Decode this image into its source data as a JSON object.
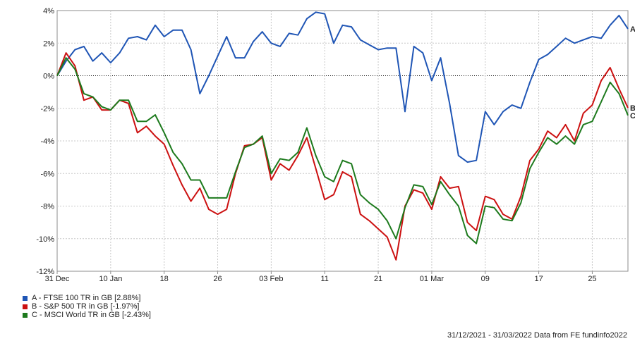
{
  "chart_data": {
    "type": "line",
    "title": "",
    "xlabel": "",
    "ylabel": "",
    "ylim": [
      -12,
      4
    ],
    "yticks": [
      4,
      2,
      0,
      -2,
      -4,
      -6,
      -8,
      -10,
      -12
    ],
    "ytick_labels": [
      "4%",
      "2%",
      "0%",
      "-2%",
      "-4%",
      "-6%",
      "-8%",
      "-10%",
      "-12%"
    ],
    "xticks": [
      {
        "label": "31 Dec",
        "index": 0
      },
      {
        "label": "10 Jan",
        "index": 6
      },
      {
        "label": "18",
        "index": 12
      },
      {
        "label": "26",
        "index": 18
      },
      {
        "label": "03 Feb",
        "index": 24
      },
      {
        "label": "11",
        "index": 30
      },
      {
        "label": "21",
        "index": 36
      },
      {
        "label": "01 Mar",
        "index": 42
      },
      {
        "label": "09",
        "index": 48
      },
      {
        "label": "17",
        "index": 54
      },
      {
        "label": "25",
        "index": 60
      }
    ],
    "n_points": 65,
    "grid": true,
    "zero_line": "dotted",
    "legend_position": "bottom-left",
    "series": [
      {
        "name": "A - FTSE 100 TR in GB [2.88%]",
        "end_label": "A",
        "color": "#1f55b5",
        "values": [
          0,
          0.9,
          1.6,
          1.8,
          0.9,
          1.4,
          0.8,
          1.4,
          2.3,
          2.4,
          2.2,
          3.1,
          2.4,
          2.8,
          2.8,
          1.6,
          -1.1,
          0,
          1.2,
          2.4,
          1.1,
          1.1,
          2.1,
          2.7,
          2.0,
          1.8,
          2.6,
          2.5,
          3.5,
          3.9,
          3.8,
          2.0,
          3.1,
          3.0,
          2.2,
          1.9,
          1.6,
          1.7,
          1.7,
          -2.2,
          1.8,
          1.4,
          -0.3,
          1.1,
          -1.7,
          -4.9,
          -5.3,
          -5.2,
          -2.2,
          -3.0,
          -2.2,
          -1.8,
          -2.0,
          -0.4,
          1.0,
          1.3,
          1.8,
          2.3,
          2.0,
          2.2,
          2.4,
          2.3,
          3.1,
          3.7,
          2.88
        ]
      },
      {
        "name": "B - S&P 500 TR in GB [-1.97%]",
        "end_label": "B",
        "color": "#cc1111",
        "values": [
          0,
          1.4,
          0.6,
          -1.5,
          -1.3,
          -2.1,
          -2.1,
          -1.5,
          -1.7,
          -3.5,
          -3.1,
          -3.7,
          -4.2,
          -5.5,
          -6.7,
          -7.7,
          -6.9,
          -8.2,
          -8.5,
          -8.2,
          -6.0,
          -4.3,
          -4.2,
          -3.8,
          -6.4,
          -5.4,
          -5.8,
          -4.9,
          -3.8,
          -5.7,
          -7.6,
          -7.3,
          -5.9,
          -6.2,
          -8.5,
          -8.9,
          -9.4,
          -9.9,
          -11.3,
          -8.0,
          -7.0,
          -7.2,
          -8.2,
          -6.2,
          -6.9,
          -6.8,
          -9.0,
          -9.5,
          -7.4,
          -7.6,
          -8.5,
          -8.8,
          -7.4,
          -5.2,
          -4.5,
          -3.4,
          -3.8,
          -3.0,
          -4.0,
          -2.3,
          -1.8,
          -0.3,
          0.5,
          -0.8,
          -1.97
        ]
      },
      {
        "name": "C - MSCI World TR in GB [-2.43%]",
        "end_label": "C",
        "color": "#1d7a1d",
        "values": [
          0,
          1.1,
          0.4,
          -1.1,
          -1.3,
          -1.9,
          -2.1,
          -1.5,
          -1.5,
          -2.8,
          -2.8,
          -2.4,
          -3.5,
          -4.7,
          -5.4,
          -6.4,
          -6.4,
          -7.5,
          -7.5,
          -7.5,
          -5.9,
          -4.4,
          -4.2,
          -3.7,
          -6.0,
          -5.1,
          -5.2,
          -4.7,
          -3.2,
          -4.9,
          -6.2,
          -6.5,
          -5.2,
          -5.4,
          -7.3,
          -7.8,
          -8.2,
          -8.9,
          -10.0,
          -8.1,
          -6.7,
          -6.8,
          -7.9,
          -6.5,
          -7.3,
          -8.0,
          -9.8,
          -10.3,
          -8.0,
          -8.1,
          -8.8,
          -8.9,
          -7.8,
          -5.7,
          -4.7,
          -3.8,
          -4.2,
          -3.7,
          -4.2,
          -3.0,
          -2.8,
          -1.6,
          -0.4,
          -1.1,
          -2.43
        ]
      }
    ]
  },
  "footer": "31/12/2021 - 31/03/2022 Data from FE fundinfo2022"
}
